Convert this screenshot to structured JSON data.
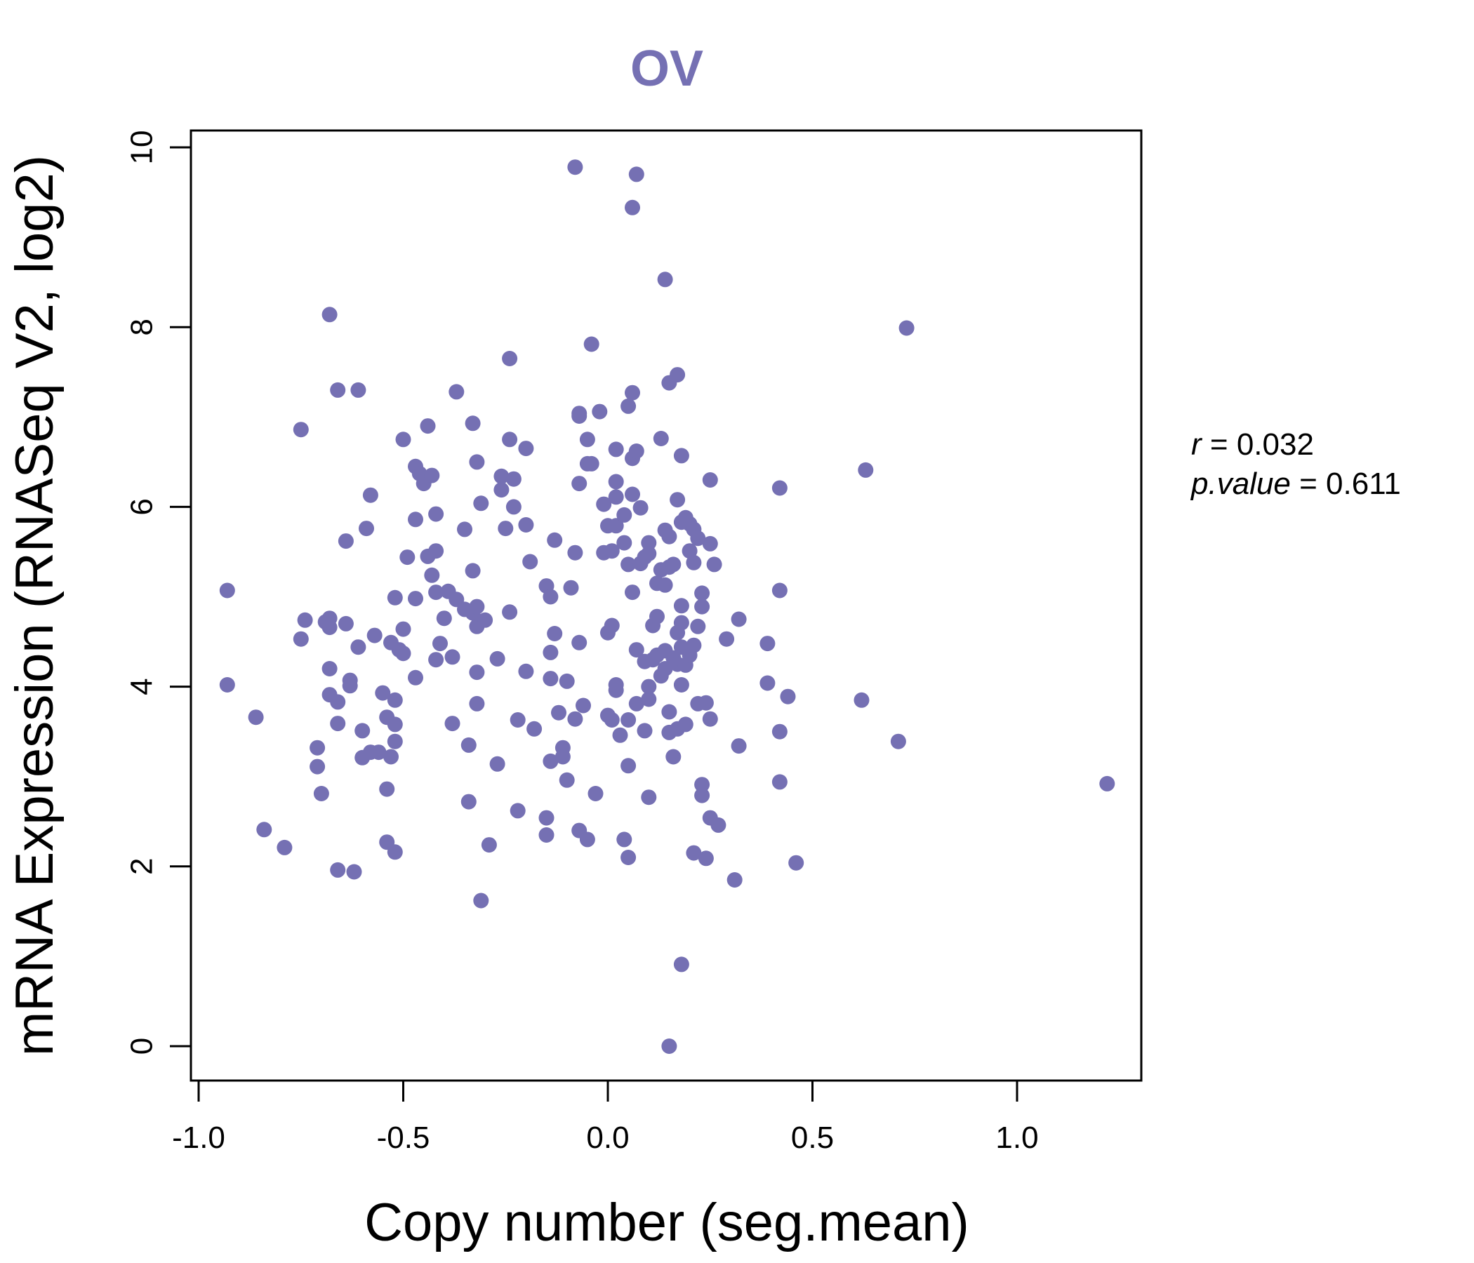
{
  "chart_data": {
    "type": "scatter",
    "title": "OV",
    "xlabel": "Copy number (seg.mean)",
    "ylabel": "mRNA Expression (RNASeq V2, log2)",
    "xlim": [
      -1.0,
      1.3
    ],
    "ylim": [
      -0.35,
      10.2
    ],
    "x_ticks": [
      -1.0,
      -0.5,
      0.0,
      0.5,
      1.0
    ],
    "x_tick_labels": [
      "-1.0",
      "-0.5",
      "0.0",
      "0.5",
      "1.0"
    ],
    "y_ticks": [
      0,
      2,
      4,
      6,
      8,
      10
    ],
    "y_tick_labels": [
      "0",
      "2",
      "4",
      "6",
      "8",
      "10"
    ],
    "grid": false,
    "point_color": "#7570b3",
    "stats": {
      "r_symbol": "r",
      "r_value": "0.032",
      "p_symbol": "p.value",
      "p_value": "0.611"
    },
    "points": [
      [
        -0.93,
        5.07
      ],
      [
        -0.93,
        4.02
      ],
      [
        -0.86,
        3.66
      ],
      [
        -0.84,
        2.41
      ],
      [
        -0.79,
        2.21
      ],
      [
        -0.75,
        6.86
      ],
      [
        -0.75,
        4.53
      ],
      [
        -0.74,
        4.74
      ],
      [
        -0.71,
        3.32
      ],
      [
        -0.71,
        3.11
      ],
      [
        -0.7,
        2.81
      ],
      [
        -0.69,
        4.72
      ],
      [
        -0.68,
        8.14
      ],
      [
        -0.68,
        4.76
      ],
      [
        -0.68,
        4.66
      ],
      [
        -0.68,
        4.2
      ],
      [
        -0.68,
        3.91
      ],
      [
        -0.66,
        3.83
      ],
      [
        -0.66,
        3.59
      ],
      [
        -0.66,
        1.96
      ],
      [
        -0.66,
        7.3
      ],
      [
        -0.64,
        5.62
      ],
      [
        -0.64,
        4.7
      ],
      [
        -0.63,
        4.07
      ],
      [
        -0.63,
        4.01
      ],
      [
        -0.62,
        1.94
      ],
      [
        -0.61,
        7.3
      ],
      [
        -0.61,
        4.44
      ],
      [
        -0.6,
        3.51
      ],
      [
        -0.6,
        3.21
      ],
      [
        -0.59,
        5.76
      ],
      [
        -0.58,
        6.13
      ],
      [
        -0.58,
        3.27
      ],
      [
        -0.57,
        4.57
      ],
      [
        -0.56,
        3.27
      ],
      [
        -0.55,
        3.93
      ],
      [
        -0.54,
        3.66
      ],
      [
        -0.54,
        2.86
      ],
      [
        -0.54,
        2.27
      ],
      [
        -0.53,
        3.22
      ],
      [
        -0.53,
        4.49
      ],
      [
        -0.52,
        3.39
      ],
      [
        -0.52,
        4.99
      ],
      [
        -0.52,
        2.16
      ],
      [
        -0.52,
        3.85
      ],
      [
        -0.52,
        3.58
      ],
      [
        -0.51,
        4.41
      ],
      [
        -0.5,
        4.37
      ],
      [
        -0.5,
        4.64
      ],
      [
        -0.5,
        6.75
      ],
      [
        -0.49,
        5.44
      ],
      [
        -0.47,
        4.1
      ],
      [
        -0.47,
        5.86
      ],
      [
        -0.47,
        4.98
      ],
      [
        -0.47,
        6.45
      ],
      [
        -0.46,
        6.37
      ],
      [
        -0.45,
        6.26
      ],
      [
        -0.44,
        5.45
      ],
      [
        -0.44,
        6.9
      ],
      [
        -0.43,
        5.24
      ],
      [
        -0.43,
        6.35
      ],
      [
        -0.42,
        5.51
      ],
      [
        -0.42,
        5.92
      ],
      [
        -0.42,
        4.3
      ],
      [
        -0.42,
        5.05
      ],
      [
        -0.41,
        4.48
      ],
      [
        -0.4,
        4.76
      ],
      [
        -0.39,
        5.06
      ],
      [
        -0.38,
        4.33
      ],
      [
        -0.38,
        3.59
      ],
      [
        -0.37,
        7.28
      ],
      [
        -0.37,
        4.97
      ],
      [
        -0.35,
        5.75
      ],
      [
        -0.35,
        4.86
      ],
      [
        -0.34,
        3.35
      ],
      [
        -0.34,
        2.72
      ],
      [
        -0.33,
        6.93
      ],
      [
        -0.33,
        5.29
      ],
      [
        -0.33,
        4.82
      ],
      [
        -0.32,
        4.89
      ],
      [
        -0.32,
        4.67
      ],
      [
        -0.32,
        6.5
      ],
      [
        -0.32,
        4.16
      ],
      [
        -0.32,
        3.81
      ],
      [
        -0.31,
        1.62
      ],
      [
        -0.31,
        6.04
      ],
      [
        -0.3,
        4.74
      ],
      [
        -0.29,
        2.24
      ],
      [
        -0.27,
        4.31
      ],
      [
        -0.27,
        3.14
      ],
      [
        -0.26,
        6.34
      ],
      [
        -0.26,
        6.19
      ],
      [
        -0.25,
        5.76
      ],
      [
        -0.24,
        7.65
      ],
      [
        -0.24,
        6.75
      ],
      [
        -0.24,
        4.83
      ],
      [
        -0.23,
        6.31
      ],
      [
        -0.23,
        6.0
      ],
      [
        -0.22,
        3.63
      ],
      [
        -0.22,
        2.62
      ],
      [
        -0.2,
        6.65
      ],
      [
        -0.2,
        5.8
      ],
      [
        -0.2,
        4.17
      ],
      [
        -0.19,
        5.39
      ],
      [
        -0.18,
        3.53
      ],
      [
        -0.15,
        5.12
      ],
      [
        -0.15,
        2.54
      ],
      [
        -0.15,
        2.35
      ],
      [
        -0.14,
        5.0
      ],
      [
        -0.14,
        4.38
      ],
      [
        -0.14,
        4.09
      ],
      [
        -0.14,
        3.17
      ],
      [
        -0.13,
        4.59
      ],
      [
        -0.13,
        5.63
      ],
      [
        -0.12,
        3.71
      ],
      [
        -0.11,
        3.32
      ],
      [
        -0.11,
        3.22
      ],
      [
        -0.1,
        2.96
      ],
      [
        -0.1,
        4.06
      ],
      [
        -0.09,
        5.1
      ],
      [
        -0.08,
        5.49
      ],
      [
        -0.08,
        3.64
      ],
      [
        -0.07,
        7.04
      ],
      [
        -0.07,
        7.01
      ],
      [
        -0.07,
        6.26
      ],
      [
        -0.07,
        4.49
      ],
      [
        -0.07,
        2.4
      ],
      [
        -0.08,
        9.78
      ],
      [
        -0.06,
        3.79
      ],
      [
        -0.05,
        6.48
      ],
      [
        -0.05,
        2.3
      ],
      [
        -0.05,
        6.75
      ],
      [
        -0.04,
        6.48
      ],
      [
        -0.04,
        7.81
      ],
      [
        -0.03,
        2.81
      ],
      [
        -0.02,
        7.06
      ],
      [
        -0.01,
        6.03
      ],
      [
        -0.01,
        5.49
      ],
      [
        0.0,
        5.79
      ],
      [
        0.0,
        4.6
      ],
      [
        0.0,
        3.68
      ],
      [
        0.01,
        4.68
      ],
      [
        0.01,
        3.63
      ],
      [
        0.01,
        5.51
      ],
      [
        0.02,
        5.79
      ],
      [
        0.02,
        3.96
      ],
      [
        0.02,
        4.02
      ],
      [
        0.02,
        6.64
      ],
      [
        0.02,
        6.28
      ],
      [
        0.02,
        6.11
      ],
      [
        0.03,
        3.46
      ],
      [
        0.04,
        5.6
      ],
      [
        0.04,
        5.91
      ],
      [
        0.04,
        2.3
      ],
      [
        0.05,
        2.1
      ],
      [
        0.05,
        3.63
      ],
      [
        0.05,
        3.12
      ],
      [
        0.05,
        5.36
      ],
      [
        0.05,
        7.12
      ],
      [
        0.06,
        7.27
      ],
      [
        0.06,
        9.33
      ],
      [
        0.06,
        6.54
      ],
      [
        0.06,
        6.14
      ],
      [
        0.06,
        5.05
      ],
      [
        0.07,
        6.62
      ],
      [
        0.07,
        4.41
      ],
      [
        0.07,
        3.81
      ],
      [
        0.07,
        9.7
      ],
      [
        0.08,
        5.99
      ],
      [
        0.08,
        5.37
      ],
      [
        0.09,
        3.51
      ],
      [
        0.09,
        4.28
      ],
      [
        0.09,
        5.44
      ],
      [
        0.1,
        5.6
      ],
      [
        0.1,
        5.48
      ],
      [
        0.1,
        3.86
      ],
      [
        0.1,
        2.77
      ],
      [
        0.1,
        4.0
      ],
      [
        0.11,
        4.3
      ],
      [
        0.11,
        4.68
      ],
      [
        0.12,
        5.15
      ],
      [
        0.12,
        4.78
      ],
      [
        0.12,
        4.35
      ],
      [
        0.13,
        5.3
      ],
      [
        0.13,
        4.12
      ],
      [
        0.13,
        6.76
      ],
      [
        0.14,
        5.13
      ],
      [
        0.14,
        4.4
      ],
      [
        0.14,
        4.2
      ],
      [
        0.14,
        8.53
      ],
      [
        0.14,
        5.74
      ],
      [
        0.15,
        5.67
      ],
      [
        0.15,
        5.33
      ],
      [
        0.15,
        3.72
      ],
      [
        0.15,
        3.49
      ],
      [
        0.15,
        7.38
      ],
      [
        0.15,
        0.0
      ],
      [
        0.16,
        4.32
      ],
      [
        0.16,
        3.22
      ],
      [
        0.16,
        5.36
      ],
      [
        0.17,
        7.47
      ],
      [
        0.17,
        6.08
      ],
      [
        0.17,
        4.6
      ],
      [
        0.17,
        4.25
      ],
      [
        0.17,
        3.53
      ],
      [
        0.18,
        6.57
      ],
      [
        0.18,
        4.9
      ],
      [
        0.18,
        4.71
      ],
      [
        0.18,
        4.44
      ],
      [
        0.18,
        4.02
      ],
      [
        0.18,
        0.91
      ],
      [
        0.18,
        5.83
      ],
      [
        0.19,
        5.88
      ],
      [
        0.19,
        4.24
      ],
      [
        0.19,
        3.58
      ],
      [
        0.2,
        5.81
      ],
      [
        0.2,
        4.35
      ],
      [
        0.2,
        5.51
      ],
      [
        0.21,
        4.46
      ],
      [
        0.21,
        5.75
      ],
      [
        0.21,
        5.38
      ],
      [
        0.21,
        2.15
      ],
      [
        0.22,
        4.67
      ],
      [
        0.22,
        3.81
      ],
      [
        0.22,
        5.65
      ],
      [
        0.23,
        5.04
      ],
      [
        0.23,
        4.89
      ],
      [
        0.23,
        2.91
      ],
      [
        0.23,
        2.79
      ],
      [
        0.24,
        3.82
      ],
      [
        0.24,
        2.09
      ],
      [
        0.25,
        6.3
      ],
      [
        0.25,
        5.59
      ],
      [
        0.25,
        3.64
      ],
      [
        0.25,
        2.54
      ],
      [
        0.26,
        5.36
      ],
      [
        0.27,
        2.46
      ],
      [
        0.29,
        4.53
      ],
      [
        0.31,
        1.85
      ],
      [
        0.32,
        3.34
      ],
      [
        0.32,
        4.75
      ],
      [
        0.39,
        4.04
      ],
      [
        0.39,
        4.48
      ],
      [
        0.42,
        5.07
      ],
      [
        0.42,
        6.21
      ],
      [
        0.42,
        3.5
      ],
      [
        0.42,
        2.94
      ],
      [
        0.44,
        3.89
      ],
      [
        0.46,
        2.04
      ],
      [
        0.62,
        3.85
      ],
      [
        0.63,
        6.41
      ],
      [
        0.71,
        3.39
      ],
      [
        0.73,
        7.99
      ],
      [
        1.22,
        2.92
      ]
    ]
  }
}
